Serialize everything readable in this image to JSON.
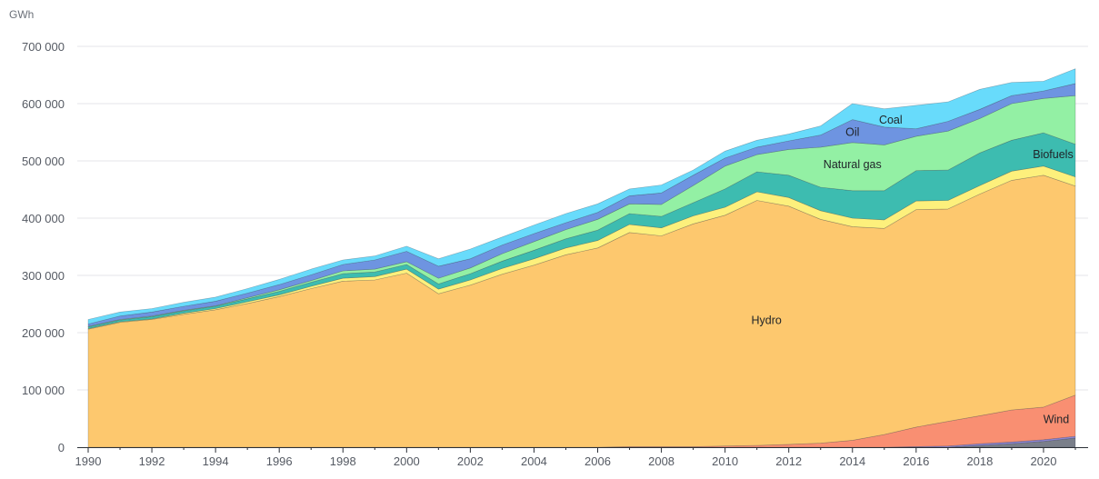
{
  "chart_data": {
    "type": "area",
    "stacked": true,
    "unit_label": "GWh",
    "ylim": [
      0,
      700000
    ],
    "y_ticks": [
      0,
      100000,
      200000,
      300000,
      400000,
      500000,
      600000,
      700000
    ],
    "y_tick_labels": [
      "0",
      "100 000",
      "200 000",
      "300 000",
      "400 000",
      "500 000",
      "600 000",
      "700 000"
    ],
    "x_ticks": [
      1990,
      1992,
      1994,
      1996,
      1998,
      2000,
      2002,
      2004,
      2006,
      2008,
      2010,
      2012,
      2014,
      2016,
      2018,
      2020
    ],
    "x_tick_labels": [
      "1990",
      "1992",
      "1994",
      "1996",
      "1998",
      "2000",
      "2002",
      "2004",
      "2006",
      "2008",
      "2010",
      "2012",
      "2014",
      "2016",
      "2018",
      "2020"
    ],
    "xlim": [
      1990,
      2021
    ],
    "grid": true,
    "x": [
      1990,
      1991,
      1992,
      1993,
      1994,
      1995,
      1996,
      1997,
      1998,
      1999,
      2000,
      2001,
      2002,
      2003,
      2004,
      2005,
      2006,
      2007,
      2008,
      2009,
      2010,
      2011,
      2012,
      2013,
      2014,
      2015,
      2016,
      2017,
      2018,
      2019,
      2020,
      2021
    ],
    "series": [
      {
        "name": "",
        "color": "#7a7f8a",
        "values": [
          0,
          0,
          0,
          0,
          0,
          0,
          0,
          0,
          0,
          0,
          0,
          0,
          0,
          0,
          0,
          0,
          0,
          0,
          0,
          0,
          0,
          0,
          0,
          0,
          0,
          0,
          0,
          0,
          3000,
          6000,
          10000,
          16000
        ]
      },
      {
        "name": "",
        "color": "#8d86d3",
        "values": [
          0,
          0,
          0,
          0,
          0,
          0,
          0,
          0,
          0,
          0,
          0,
          0,
          0,
          0,
          0,
          0,
          0,
          0,
          0,
          0,
          0,
          0,
          0,
          0,
          0,
          0,
          1000,
          2000,
          3000,
          3000,
          3000,
          3000
        ]
      },
      {
        "name": "Wind",
        "color": "#f98f72",
        "values": [
          0,
          0,
          0,
          0,
          0,
          0,
          0,
          0,
          0,
          0,
          0,
          0,
          0,
          0,
          0,
          0,
          0,
          1000,
          1000,
          1000,
          2000,
          3000,
          5000,
          7000,
          12000,
          22000,
          34000,
          43000,
          49000,
          56000,
          57000,
          72000
        ]
      },
      {
        "name": "Hydro",
        "color": "#fdc86e",
        "values": [
          206000,
          218000,
          223000,
          232000,
          240000,
          251000,
          263000,
          277000,
          290000,
          292000,
          304000,
          268000,
          283000,
          302000,
          318000,
          336000,
          348000,
          374000,
          368000,
          389000,
          403000,
          428000,
          416000,
          391000,
          373000,
          360000,
          380000,
          371000,
          387000,
          401000,
          405000,
          365000
        ]
      },
      {
        "name": "",
        "color": "#fdf07c",
        "values": [
          1000,
          1000,
          1000,
          2000,
          2000,
          3000,
          3000,
          4000,
          5000,
          6000,
          7000,
          8000,
          9000,
          10000,
          11000,
          12000,
          13000,
          14000,
          14000,
          14000,
          14000,
          15000,
          15000,
          15000,
          15000,
          15000,
          15000,
          15000,
          15000,
          16000,
          16000,
          16000
        ]
      },
      {
        "name": "Biofuels",
        "color": "#3dbcb0",
        "values": [
          3000,
          3000,
          4000,
          4000,
          4000,
          5000,
          6000,
          7000,
          8000,
          8000,
          8000,
          9000,
          11000,
          13000,
          15000,
          16000,
          18000,
          19000,
          20000,
          23000,
          32000,
          35000,
          39000,
          41000,
          48000,
          51000,
          53000,
          53000,
          57000,
          54000,
          58000,
          57000
        ]
      },
      {
        "name": "Natural gas",
        "color": "#93f0a4",
        "values": [
          1000,
          1000,
          1000,
          1000,
          1000,
          2000,
          3000,
          3000,
          5000,
          5000,
          5000,
          10000,
          10000,
          13000,
          15000,
          16000,
          19000,
          17000,
          21000,
          30000,
          40000,
          30000,
          45000,
          70000,
          84000,
          80000,
          60000,
          68000,
          60000,
          64000,
          60000,
          85000
        ]
      },
      {
        "name": "Oil",
        "color": "#6e94e1",
        "values": [
          4000,
          6000,
          7000,
          7000,
          8000,
          8000,
          9000,
          10000,
          11000,
          16000,
          18000,
          21000,
          16000,
          15000,
          14000,
          12000,
          12000,
          14000,
          20000,
          18000,
          14000,
          13000,
          15000,
          21000,
          40000,
          31000,
          13000,
          17000,
          16000,
          14000,
          13000,
          21000
        ]
      },
      {
        "name": "Coal",
        "color": "#68dbfb",
        "values": [
          8000,
          7000,
          6000,
          7000,
          7000,
          8000,
          9000,
          10000,
          8000,
          7000,
          9000,
          13000,
          17000,
          14000,
          15000,
          16000,
          15000,
          12000,
          14000,
          9000,
          12000,
          12000,
          12000,
          16000,
          28000,
          32000,
          41000,
          34000,
          35000,
          23000,
          17000,
          26000
        ]
      }
    ],
    "labels": [
      {
        "series": "Hydro",
        "text": "Hydro",
        "x": 2011.3,
        "y": 215000
      },
      {
        "series": "Wind",
        "text": "Wind",
        "x": 2020.4,
        "y": 42000
      },
      {
        "series": "Biofuels",
        "text": "Biofuels",
        "x": 2020.3,
        "y": 505000
      },
      {
        "series": "Natural gas",
        "text": "Natural gas",
        "x": 2014,
        "y": 487000
      },
      {
        "series": "Oil",
        "text": "Oil",
        "x": 2014,
        "y": 544000
      },
      {
        "series": "Coal",
        "text": "Coal",
        "x": 2015.2,
        "y": 565000
      }
    ]
  }
}
